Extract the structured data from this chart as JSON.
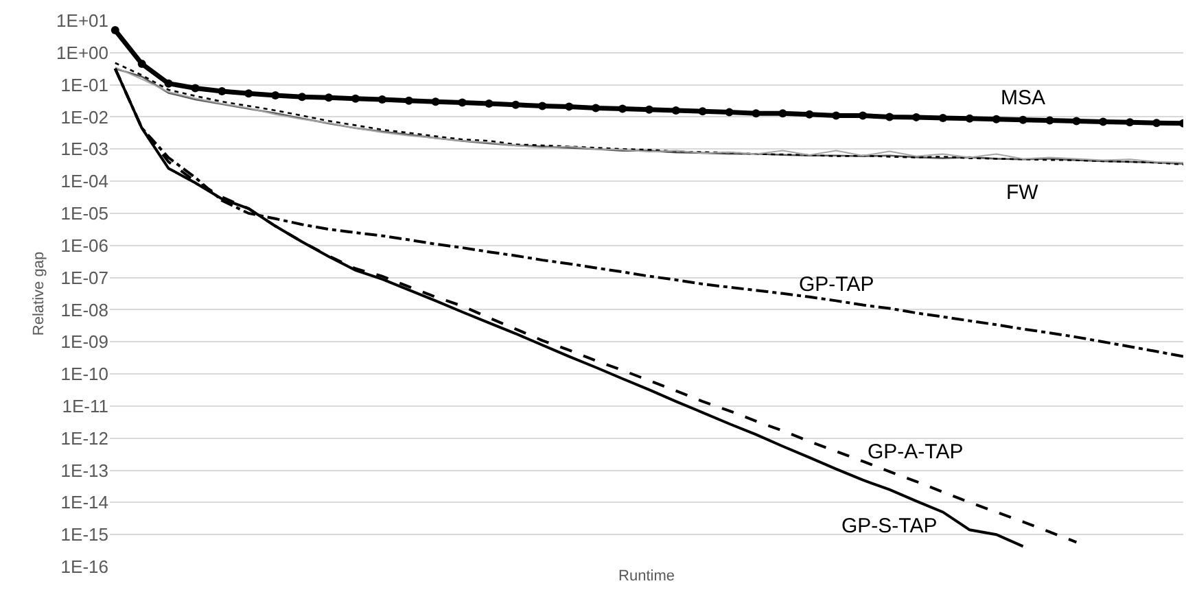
{
  "chart_data": {
    "type": "line",
    "xlabel": "Runtime",
    "ylabel": "Relative gap",
    "log": "y",
    "grid": "y",
    "legend": false,
    "tick_labels": "y",
    "categories": [
      null,
      null,
      null,
      null,
      null,
      null,
      null,
      null,
      null,
      null,
      null,
      null,
      null,
      null,
      null,
      null,
      null,
      null,
      null,
      null,
      null,
      null,
      null,
      null,
      null,
      null,
      null,
      null,
      null,
      null,
      null,
      null,
      null,
      null,
      null,
      null,
      null,
      null,
      null,
      null,
      null
    ],
    "ylim": [
      1e-16,
      10
    ],
    "yticks": [
      {
        "value": 10,
        "label": "1E+01"
      },
      {
        "value": 1,
        "label": "1E+00"
      },
      {
        "value": 0.1,
        "label": "1E-01"
      },
      {
        "value": 0.01,
        "label": "1E-02"
      },
      {
        "value": 0.001,
        "label": "1E-03"
      },
      {
        "value": 0.0001,
        "label": "1E-04"
      },
      {
        "value": 1e-05,
        "label": "1E-05"
      },
      {
        "value": 1e-06,
        "label": "1E-06"
      },
      {
        "value": 1e-07,
        "label": "1E-07"
      },
      {
        "value": 1e-08,
        "label": "1E-08"
      },
      {
        "value": 1e-09,
        "label": "1E-09"
      },
      {
        "value": 1e-10,
        "label": "1E-10"
      },
      {
        "value": 1e-11,
        "label": "1E-11"
      },
      {
        "value": 1e-12,
        "label": "1E-12"
      },
      {
        "value": 1e-13,
        "label": "1E-13"
      },
      {
        "value": 1e-14,
        "label": "1E-14"
      },
      {
        "value": 1e-15,
        "label": "1E-15"
      },
      {
        "value": 1e-16,
        "label": "1E-16"
      }
    ],
    "series": [
      {
        "name": "MSA",
        "color": "#000000",
        "line_style": "solid",
        "marker": "circle",
        "values": [
          5,
          0.45,
          0.11,
          0.079,
          0.063,
          0.054,
          0.047,
          0.042,
          0.04,
          0.037,
          0.035,
          0.032,
          0.03,
          0.028,
          0.026,
          0.024,
          0.022,
          0.021,
          0.019,
          0.018,
          0.017,
          0.016,
          0.015,
          0.014,
          0.013,
          0.013,
          0.012,
          0.011,
          0.011,
          0.01,
          0.0098,
          0.0093,
          0.0089,
          0.0085,
          0.0081,
          0.0078,
          0.0074,
          0.0071,
          0.0068,
          0.0065,
          0.0063
        ]
      },
      {
        "name": "FW",
        "color": "#595959",
        "line_style": "solid",
        "marker": "none",
        "values": [
          0.32,
          0.18,
          0.056,
          0.035,
          0.025,
          0.018,
          0.013,
          0.0089,
          0.0063,
          0.0045,
          0.0035,
          0.0028,
          0.0022,
          0.0018,
          0.0015,
          0.0013,
          0.0012,
          0.0011,
          0.001,
          0.00089,
          0.00089,
          0.00079,
          0.00076,
          0.00071,
          0.00071,
          0.00066,
          0.00063,
          0.00063,
          0.0006,
          0.00063,
          0.00056,
          0.00052,
          0.00056,
          0.0005,
          0.00048,
          0.0005,
          0.00045,
          0.00042,
          0.0004,
          0.00038,
          0.00035
        ]
      },
      {
        "color": "#000000",
        "line_style": "dotted",
        "marker": "none",
        "values": [
          0.48,
          0.2,
          0.07,
          0.045,
          0.03,
          0.022,
          0.016,
          0.011,
          0.0075,
          0.0055,
          0.004,
          0.0032,
          0.0025,
          0.002,
          0.0018,
          0.0014,
          0.0013,
          0.0012,
          0.0011,
          0.001,
          0.00095,
          0.00085,
          0.0008,
          0.00078,
          0.0007,
          0.00068,
          0.00065,
          0.0006,
          0.00062,
          0.00058,
          0.00055,
          0.00058,
          0.00052,
          0.0005,
          0.00048,
          0.00046,
          0.00045,
          0.00042,
          0.0004,
          0.00038,
          0.00033
        ]
      },
      {
        "color": "#a6a6a6",
        "line_style": "solid",
        "marker": "none",
        "values": [
          0.35,
          0.15,
          0.06,
          0.038,
          0.026,
          0.019,
          0.012,
          0.0085,
          0.0065,
          0.0045,
          0.0033,
          0.0026,
          0.0022,
          0.0018,
          0.0016,
          0.0013,
          0.0011,
          0.0012,
          0.001,
          0.00095,
          0.00082,
          0.0009,
          0.00075,
          0.0008,
          0.0007,
          0.0009,
          0.00065,
          0.0009,
          0.00062,
          0.00085,
          0.0006,
          0.0007,
          0.00055,
          0.0007,
          0.0005,
          0.00055,
          0.0005,
          0.00045,
          0.00048,
          0.0004,
          0.00038
        ]
      },
      {
        "name": "GP-TAP",
        "color": "#000000",
        "line_style": "dashdot",
        "marker": "none",
        "values": [
          0.32,
          0.0045,
          0.00054,
          0.00013,
          2.5e-05,
          1e-05,
          6.8e-06,
          4.5e-06,
          3.2e-06,
          2.5e-06,
          2e-06,
          1.5e-06,
          1.1e-06,
          8.5e-07,
          6.3e-07,
          4.8e-07,
          3.5e-07,
          2.7e-07,
          2e-07,
          1.5e-07,
          1.1e-07,
          8.5e-08,
          6.3e-08,
          5e-08,
          4e-08,
          3.2e-08,
          2.5e-08,
          1.9e-08,
          1.4e-08,
          1.1e-08,
          7.9e-09,
          6e-09,
          4.5e-09,
          3.4e-09,
          2.5e-09,
          1.9e-09,
          1.4e-09,
          1e-09,
          7.1e-10,
          5e-10,
          3.5e-10
        ]
      },
      {
        "name": "GP-A-TAP",
        "color": "#000000",
        "line_style": "dashed",
        "marker": "none",
        "values": [
          0.32,
          0.0045,
          0.0004,
          0.0001,
          3.2e-05,
          1.4e-05,
          4e-06,
          1.3e-06,
          4.7e-07,
          1.9e-07,
          1.1e-07,
          5.2e-08,
          2.5e-08,
          1.3e-08,
          5.6e-09,
          2.5e-09,
          1.1e-09,
          5.5e-10,
          2.6e-10,
          1.3e-10,
          6.2e-11,
          3e-11,
          1.4e-11,
          7.1e-12,
          3.4e-12,
          1.7e-12,
          7.9e-13,
          3.9e-13,
          1.9e-13,
          9.1e-14,
          4.5e-14,
          2.1e-14,
          1e-14,
          5e-15,
          2.5e-15,
          1.2e-15,
          5.8e-16,
          null,
          null,
          null,
          null
        ]
      },
      {
        "name": "GP-S-TAP",
        "color": "#000000",
        "line_style": "solid",
        "marker": "none",
        "values": [
          0.32,
          0.0045,
          0.00025,
          8.9e-05,
          2.8e-05,
          1.4e-05,
          4e-06,
          1.3e-06,
          4.5e-07,
          1.7e-07,
          8.9e-08,
          4.1e-08,
          1.9e-08,
          8.5e-09,
          3.9e-09,
          1.8e-09,
          7.9e-10,
          3.5e-10,
          1.6e-10,
          7.1e-11,
          3.2e-11,
          1.4e-11,
          6.3e-12,
          2.8e-12,
          1.3e-12,
          5.6e-13,
          2.5e-13,
          1.1e-13,
          5e-14,
          2.5e-14,
          1.1e-14,
          5e-15,
          1.4e-15,
          1e-15,
          4.3e-16,
          null,
          null,
          null,
          null,
          null,
          null
        ]
      }
    ]
  }
}
